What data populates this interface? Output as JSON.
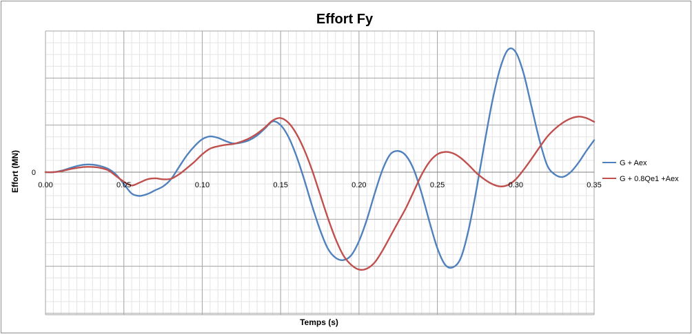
{
  "chart_data": {
    "type": "line",
    "title": "Effort Fy",
    "xlabel": "Temps (s)",
    "ylabel": "Effort (MN)",
    "xlim": [
      0,
      0.35
    ],
    "ylim": [
      -3,
      3
    ],
    "x_ticks": [
      "0.00",
      "0.05",
      "0.10",
      "0.15",
      "0.20",
      "0.25",
      "0.30",
      "0.35"
    ],
    "y_ticks": [
      "0"
    ],
    "grid": true,
    "legend_position": "right",
    "series": [
      {
        "name": "G + Aex",
        "color": "#4f81bd",
        "points": [
          [
            0,
            0
          ],
          [
            0.005,
            0
          ],
          [
            0.01,
            0.03
          ],
          [
            0.015,
            0.08
          ],
          [
            0.02,
            0.13
          ],
          [
            0.025,
            0.16
          ],
          [
            0.03,
            0.16
          ],
          [
            0.035,
            0.13
          ],
          [
            0.04,
            0.07
          ],
          [
            0.045,
            -0.05
          ],
          [
            0.05,
            -0.25
          ],
          [
            0.055,
            -0.45
          ],
          [
            0.06,
            -0.5
          ],
          [
            0.065,
            -0.46
          ],
          [
            0.07,
            -0.38
          ],
          [
            0.075,
            -0.3
          ],
          [
            0.08,
            -0.15
          ],
          [
            0.085,
            0.1
          ],
          [
            0.09,
            0.35
          ],
          [
            0.095,
            0.55
          ],
          [
            0.1,
            0.7
          ],
          [
            0.105,
            0.76
          ],
          [
            0.11,
            0.73
          ],
          [
            0.115,
            0.66
          ],
          [
            0.12,
            0.61
          ],
          [
            0.125,
            0.63
          ],
          [
            0.13,
            0.68
          ],
          [
            0.135,
            0.78
          ],
          [
            0.14,
            0.93
          ],
          [
            0.145,
            1.08
          ],
          [
            0.15,
            1.0
          ],
          [
            0.155,
            0.75
          ],
          [
            0.16,
            0.35
          ],
          [
            0.165,
            -0.15
          ],
          [
            0.17,
            -0.7
          ],
          [
            0.175,
            -1.2
          ],
          [
            0.18,
            -1.6
          ],
          [
            0.185,
            -1.8
          ],
          [
            0.19,
            -1.85
          ],
          [
            0.195,
            -1.75
          ],
          [
            0.2,
            -1.45
          ],
          [
            0.205,
            -1.0
          ],
          [
            0.21,
            -0.45
          ],
          [
            0.215,
            0.05
          ],
          [
            0.22,
            0.38
          ],
          [
            0.225,
            0.45
          ],
          [
            0.23,
            0.35
          ],
          [
            0.235,
            0.05
          ],
          [
            0.24,
            -0.45
          ],
          [
            0.245,
            -1.05
          ],
          [
            0.25,
            -1.6
          ],
          [
            0.255,
            -1.95
          ],
          [
            0.26,
            -2.0
          ],
          [
            0.265,
            -1.8
          ],
          [
            0.27,
            -1.2
          ],
          [
            0.275,
            -0.35
          ],
          [
            0.28,
            0.6
          ],
          [
            0.285,
            1.5
          ],
          [
            0.29,
            2.2
          ],
          [
            0.295,
            2.6
          ],
          [
            0.3,
            2.55
          ],
          [
            0.305,
            2.1
          ],
          [
            0.31,
            1.4
          ],
          [
            0.315,
            0.7
          ],
          [
            0.32,
            0.15
          ],
          [
            0.325,
            -0.05
          ],
          [
            0.33,
            -0.1
          ],
          [
            0.335,
            0.0
          ],
          [
            0.34,
            0.2
          ],
          [
            0.345,
            0.45
          ],
          [
            0.35,
            0.68
          ]
        ]
      },
      {
        "name": "G + 0.8Qe1 +Aex",
        "color": "#c0504d",
        "points": [
          [
            0,
            0
          ],
          [
            0.005,
            0
          ],
          [
            0.01,
            0.02
          ],
          [
            0.015,
            0.06
          ],
          [
            0.02,
            0.09
          ],
          [
            0.025,
            0.11
          ],
          [
            0.03,
            0.11
          ],
          [
            0.035,
            0.09
          ],
          [
            0.04,
            0.04
          ],
          [
            0.045,
            -0.08
          ],
          [
            0.05,
            -0.2
          ],
          [
            0.055,
            -0.28
          ],
          [
            0.06,
            -0.22
          ],
          [
            0.065,
            -0.15
          ],
          [
            0.07,
            -0.13
          ],
          [
            0.075,
            -0.15
          ],
          [
            0.08,
            -0.14
          ],
          [
            0.085,
            -0.05
          ],
          [
            0.09,
            0.08
          ],
          [
            0.095,
            0.22
          ],
          [
            0.1,
            0.38
          ],
          [
            0.105,
            0.5
          ],
          [
            0.11,
            0.55
          ],
          [
            0.115,
            0.58
          ],
          [
            0.12,
            0.6
          ],
          [
            0.125,
            0.65
          ],
          [
            0.13,
            0.72
          ],
          [
            0.135,
            0.82
          ],
          [
            0.14,
            0.95
          ],
          [
            0.145,
            1.1
          ],
          [
            0.15,
            1.15
          ],
          [
            0.155,
            1.05
          ],
          [
            0.16,
            0.82
          ],
          [
            0.165,
            0.48
          ],
          [
            0.17,
            0.05
          ],
          [
            0.175,
            -0.45
          ],
          [
            0.18,
            -0.95
          ],
          [
            0.185,
            -1.4
          ],
          [
            0.19,
            -1.75
          ],
          [
            0.195,
            -1.95
          ],
          [
            0.2,
            -2.05
          ],
          [
            0.205,
            -2.03
          ],
          [
            0.21,
            -1.9
          ],
          [
            0.215,
            -1.65
          ],
          [
            0.22,
            -1.35
          ],
          [
            0.225,
            -1.05
          ],
          [
            0.23,
            -0.75
          ],
          [
            0.235,
            -0.4
          ],
          [
            0.24,
            -0.05
          ],
          [
            0.245,
            0.22
          ],
          [
            0.25,
            0.38
          ],
          [
            0.255,
            0.43
          ],
          [
            0.26,
            0.4
          ],
          [
            0.265,
            0.3
          ],
          [
            0.27,
            0.15
          ],
          [
            0.275,
            -0.02
          ],
          [
            0.28,
            -0.15
          ],
          [
            0.285,
            -0.25
          ],
          [
            0.29,
            -0.3
          ],
          [
            0.295,
            -0.27
          ],
          [
            0.3,
            -0.15
          ],
          [
            0.305,
            0.05
          ],
          [
            0.31,
            0.28
          ],
          [
            0.315,
            0.52
          ],
          [
            0.32,
            0.75
          ],
          [
            0.325,
            0.92
          ],
          [
            0.33,
            1.05
          ],
          [
            0.335,
            1.14
          ],
          [
            0.34,
            1.18
          ],
          [
            0.345,
            1.15
          ],
          [
            0.35,
            1.07
          ]
        ]
      }
    ]
  }
}
